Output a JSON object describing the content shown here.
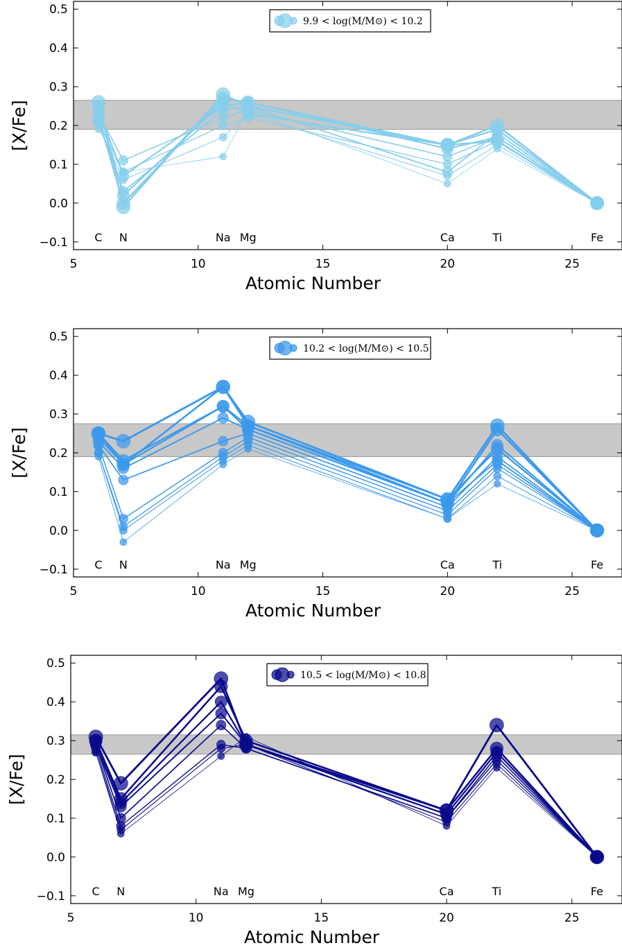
{
  "chart_data": [
    {
      "type": "line",
      "title": "",
      "xlabel": "Atomic Number",
      "ylabel": "[X/Fe]",
      "xlim": [
        5,
        27
      ],
      "ylim": [
        -0.12,
        0.52
      ],
      "xticks": [
        "5",
        "10",
        "15",
        "20",
        "25"
      ],
      "yticks": [
        "−0.1",
        "0.0",
        "0.1",
        "0.2",
        "0.3",
        "0.4",
        "0.5"
      ],
      "legend_label": "9.9 < log(M/M⊙) < 10.2",
      "legend_position": "top-center",
      "color": "#87ceeb",
      "band": [
        0.19,
        0.265
      ],
      "elements": [
        {
          "name": "C",
          "z": 6
        },
        {
          "name": "N",
          "z": 7
        },
        {
          "name": "Na",
          "z": 11
        },
        {
          "name": "Mg",
          "z": 12
        },
        {
          "name": "Ca",
          "z": 20
        },
        {
          "name": "Ti",
          "z": 22
        },
        {
          "name": "Fe",
          "z": 26
        }
      ],
      "x": [
        6,
        7,
        11,
        12,
        20,
        22,
        26
      ],
      "series": [
        {
          "values": [
            0.19,
            0.08,
            0.12,
            0.24,
            0.05,
            0.14,
            0.0
          ]
        },
        {
          "values": [
            0.2,
            0.06,
            0.17,
            0.23,
            0.07,
            0.15,
            0.0
          ]
        },
        {
          "values": [
            0.21,
            0.08,
            0.2,
            0.22,
            0.1,
            0.16,
            0.0
          ]
        },
        {
          "values": [
            0.23,
            0.11,
            0.22,
            0.24,
            0.12,
            0.17,
            0.0
          ]
        },
        {
          "values": [
            0.21,
            0.03,
            0.24,
            0.25,
            0.08,
            0.18,
            0.0
          ]
        },
        {
          "values": [
            0.24,
            0.07,
            0.25,
            0.26,
            0.14,
            0.17,
            0.0
          ]
        },
        {
          "values": [
            0.25,
            0.02,
            0.26,
            0.23,
            0.15,
            0.19,
            0.0
          ]
        },
        {
          "values": [
            0.22,
            0.0,
            0.27,
            0.26,
            0.15,
            0.16,
            0.0
          ]
        },
        {
          "values": [
            0.26,
            -0.01,
            0.28,
            0.25,
            0.15,
            0.2,
            0.0
          ]
        }
      ]
    },
    {
      "type": "line",
      "title": "",
      "xlabel": "Atomic Number",
      "ylabel": "[X/Fe]",
      "xlim": [
        5,
        27
      ],
      "ylim": [
        -0.12,
        0.52
      ],
      "xticks": [
        "5",
        "10",
        "15",
        "20",
        "25"
      ],
      "yticks": [
        "−0.1",
        "0.0",
        "0.1",
        "0.2",
        "0.3",
        "0.4",
        "0.5"
      ],
      "legend_label": "10.2 < log(M/M⊙) < 10.5",
      "legend_position": "top-center",
      "color": "#3c99ec",
      "band": [
        0.19,
        0.275
      ],
      "elements": [
        {
          "name": "C",
          "z": 6
        },
        {
          "name": "N",
          "z": 7
        },
        {
          "name": "Na",
          "z": 11
        },
        {
          "name": "Mg",
          "z": 12
        },
        {
          "name": "Ca",
          "z": 20
        },
        {
          "name": "Ti",
          "z": 22
        },
        {
          "name": "Fe",
          "z": 26
        }
      ],
      "x": [
        6,
        7,
        11,
        12,
        20,
        22,
        26
      ],
      "series": [
        {
          "values": [
            0.19,
            -0.03,
            0.17,
            0.21,
            0.03,
            0.12,
            0.0
          ]
        },
        {
          "values": [
            0.2,
            0.0,
            0.18,
            0.22,
            0.03,
            0.14,
            0.0
          ]
        },
        {
          "values": [
            0.2,
            0.01,
            0.19,
            0.23,
            0.04,
            0.16,
            0.0
          ]
        },
        {
          "values": [
            0.22,
            0.03,
            0.2,
            0.24,
            0.05,
            0.17,
            0.0
          ]
        },
        {
          "values": [
            0.22,
            0.13,
            0.23,
            0.25,
            0.06,
            0.19,
            0.0
          ]
        },
        {
          "values": [
            0.23,
            0.16,
            0.29,
            0.26,
            0.07,
            0.18,
            0.0
          ]
        },
        {
          "values": [
            0.24,
            0.17,
            0.32,
            0.26,
            0.07,
            0.22,
            0.0
          ]
        },
        {
          "values": [
            0.25,
            0.18,
            0.32,
            0.27,
            0.08,
            0.21,
            0.0
          ]
        },
        {
          "values": [
            0.25,
            0.17,
            0.37,
            0.27,
            0.07,
            0.26,
            0.0
          ]
        },
        {
          "values": [
            0.25,
            0.23,
            0.37,
            0.28,
            0.08,
            0.27,
            0.0
          ]
        }
      ]
    },
    {
      "type": "line",
      "title": "",
      "xlabel": "Atomic Number",
      "ylabel": "[X/Fe]",
      "xlim": [
        5,
        27
      ],
      "ylim": [
        -0.12,
        0.52
      ],
      "xticks": [
        "5",
        "10",
        "15",
        "20",
        "25"
      ],
      "yticks": [
        "−0.1",
        "0.0",
        "0.1",
        "0.2",
        "0.3",
        "0.4",
        "0.5"
      ],
      "legend_label": "10.5 < log(M/M⊙) < 10.8",
      "legend_position": "top-center",
      "color": "#0a0a8c",
      "band": [
        0.265,
        0.315
      ],
      "elements": [
        {
          "name": "C",
          "z": 6
        },
        {
          "name": "N",
          "z": 7
        },
        {
          "name": "Na",
          "z": 11
        },
        {
          "name": "Mg",
          "z": 12
        },
        {
          "name": "Ca",
          "z": 20
        },
        {
          "name": "Ti",
          "z": 22
        },
        {
          "name": "Fe",
          "z": 26
        }
      ],
      "x": [
        6,
        7,
        11,
        12,
        20,
        22,
        26
      ],
      "series": [
        {
          "values": [
            0.27,
            0.06,
            0.26,
            0.31,
            0.08,
            0.23,
            0.0
          ]
        },
        {
          "values": [
            0.27,
            0.07,
            0.28,
            0.29,
            0.09,
            0.24,
            0.0
          ]
        },
        {
          "values": [
            0.28,
            0.08,
            0.29,
            0.28,
            0.1,
            0.25,
            0.0
          ]
        },
        {
          "values": [
            0.29,
            0.1,
            0.34,
            0.28,
            0.1,
            0.26,
            0.0
          ]
        },
        {
          "values": [
            0.29,
            0.13,
            0.37,
            0.29,
            0.11,
            0.27,
            0.0
          ]
        },
        {
          "values": [
            0.3,
            0.14,
            0.4,
            0.29,
            0.11,
            0.27,
            0.0
          ]
        },
        {
          "values": [
            0.3,
            0.15,
            0.44,
            0.3,
            0.12,
            0.28,
            0.0
          ]
        },
        {
          "values": [
            0.31,
            0.19,
            0.46,
            0.29,
            0.12,
            0.34,
            0.0
          ]
        }
      ]
    }
  ]
}
